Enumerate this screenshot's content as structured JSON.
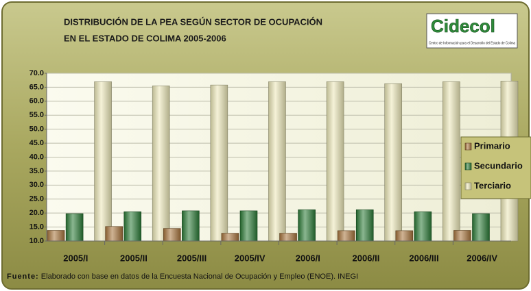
{
  "chart_data": {
    "type": "bar",
    "title_lines": [
      "DISTRIBUCIÓN DE LA PEA SEGÚN SECTOR DE OCUPACIÓN",
      "EN EL ESTADO DE COLIMA 2005-2006"
    ],
    "logo_name": "Cidecol",
    "logo_tagline": "Centro de Información para el Desarrollo del Estado de Colima",
    "categories": [
      "2005/I",
      "2005/II",
      "2005/III",
      "2005/IV",
      "2006/I",
      "2006/II",
      "2006/III",
      "2006/IV"
    ],
    "series": [
      {
        "name": "Primario",
        "color": "#a8743c",
        "values": [
          13.8,
          15.2,
          14.5,
          12.8,
          12.8,
          13.7,
          13.7,
          13.8
        ]
      },
      {
        "name": "Secundario",
        "color": "#2a7a36",
        "values": [
          19.8,
          20.5,
          20.8,
          20.8,
          21.2,
          21.2,
          20.5,
          19.8
        ]
      },
      {
        "name": "Terciario",
        "color": "#ece8b8",
        "values": [
          67.0,
          65.5,
          65.8,
          67.0,
          67.0,
          66.3,
          67.0,
          67.2
        ]
      }
    ],
    "ylim": [
      10,
      70
    ],
    "yticks": [
      {
        "value": 10,
        "label": "10.0"
      },
      {
        "value": 15,
        "label": "15.0"
      },
      {
        "value": 20,
        "label": "20.0"
      },
      {
        "value": 25,
        "label": "25.0"
      },
      {
        "value": 30,
        "label": "30.0"
      },
      {
        "value": 35,
        "label": "35.0"
      },
      {
        "value": 40,
        "label": "40.0"
      },
      {
        "value": 45,
        "label": "45.0"
      },
      {
        "value": 50,
        "label": "50.0"
      },
      {
        "value": 55,
        "label": "55.0"
      },
      {
        "value": 60,
        "label": "60.0"
      },
      {
        "value": 65,
        "label": "65.0"
      },
      {
        "value": 70,
        "label": "70.0"
      }
    ],
    "grid": true,
    "legend": "right",
    "source_label": "Fuente:",
    "source": "Elaborado con base en datos de la Encuesta Nacional de Ocupación y Empleo (ENOE). INEGI"
  }
}
